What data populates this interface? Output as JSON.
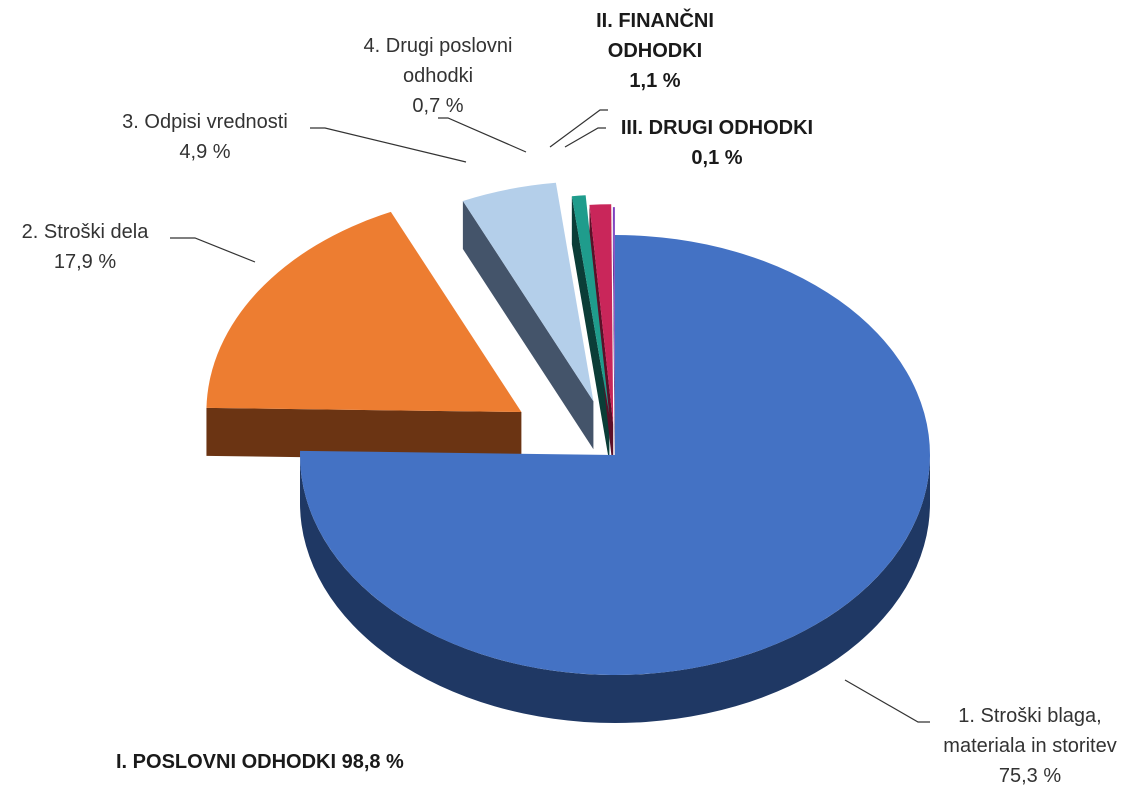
{
  "chart_data": {
    "type": "pie",
    "style": "3d-exploded",
    "slices": [
      {
        "label": "1. Stroški blaga, materiala in storitev",
        "value": 75.3,
        "value_label": "75,3 %",
        "color": "#4472C4",
        "side_color": "#1F3864",
        "label_lines": [
          "1. Stroški blaga,",
          "materiala in storitev",
          "75,3 %"
        ],
        "bold": false
      },
      {
        "label": "2. Stroški dela",
        "value": 17.9,
        "value_label": "17,9 %",
        "color": "#ED7D31",
        "side_color": "#6B3413",
        "label_lines": [
          "2. Stroški dela",
          "17,9 %"
        ],
        "bold": false
      },
      {
        "label": "3. Odpisi vrednosti",
        "value": 4.9,
        "value_label": "4,9 %",
        "color": "#B4CFEA",
        "side_color": "#44546A",
        "label_lines": [
          "3. Odpisi vrednosti",
          "4,9 %"
        ],
        "bold": false
      },
      {
        "label": "4. Drugi poslovni odhodki",
        "value": 0.7,
        "value_label": "0,7 %",
        "color": "#1F9C8C",
        "side_color": "#0B3D37",
        "label_lines": [
          "4. Drugi poslovni",
          "odhodki",
          "0,7 %"
        ],
        "bold": false
      },
      {
        "label": "II. FINANČNI ODHODKI",
        "value": 1.1,
        "value_label": "1,1 %",
        "color": "#C9265A",
        "side_color": "#5C0F28",
        "label_lines": [
          "II. FINANČNI",
          "ODHODKI",
          "1,1 %"
        ],
        "bold": true
      },
      {
        "label": "III. DRUGI ODHODKI",
        "value": 0.1,
        "value_label": "0,1 %",
        "color": "#7F3FBF",
        "side_color": "#3A1D57",
        "label_lines": [
          "III. DRUGI ODHODKI",
          "0,1 %"
        ],
        "bold": true
      }
    ],
    "group_label": "I. POSLOVNI ODHODKI 98,8 %",
    "legend": "none"
  }
}
